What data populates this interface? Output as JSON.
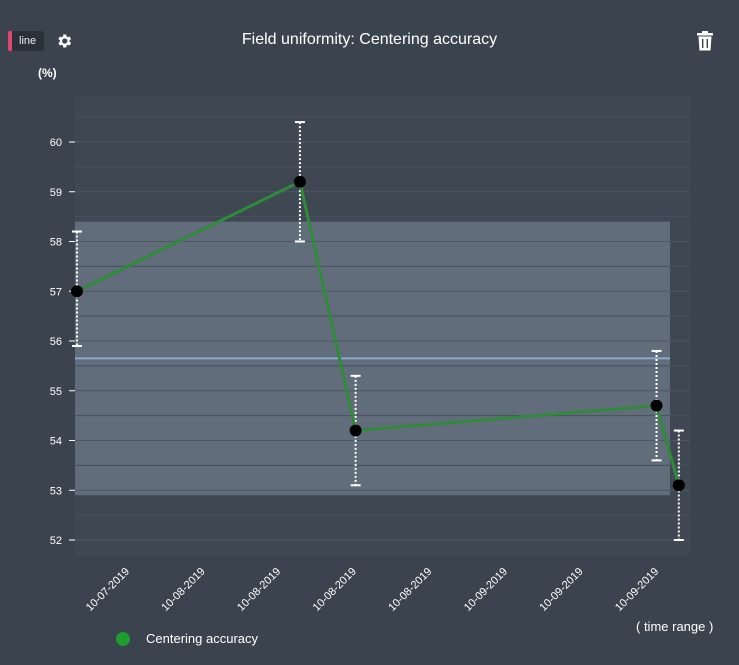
{
  "header": {
    "type_badge": "line",
    "title": "Field uniformity: Centering accuracy",
    "settings_icon": "gear-icon",
    "delete_icon": "trash-icon"
  },
  "colors": {
    "background": "#3b444e",
    "band": "#66717f",
    "mean_line": "#8aa9cf",
    "series": "#2f8a3a",
    "point": "#000000",
    "accent": "#e0466e",
    "legend_dot": "#1f9c2e"
  },
  "chart_data": {
    "type": "line",
    "title": "Field uniformity: Centering accuracy",
    "ylabel": "(%)",
    "xlabel": "( time range )",
    "ylim": [
      51.6,
      61.0
    ],
    "yticks": [
      "52",
      "53",
      "54",
      "55",
      "56",
      "57",
      "58",
      "59",
      "60"
    ],
    "xticks": [
      "10-07-2019",
      "10-08-2019",
      "10-08-2019",
      "10-08-2019",
      "10-08-2019",
      "10-09-2019",
      "10-09-2019",
      "10-09-2019"
    ],
    "grid": true,
    "legend_position": "bottom-left",
    "series": [
      {
        "name": "Centering accuracy",
        "points": [
          {
            "x": 0.0,
            "y": 57.0,
            "err_low": 55.9,
            "err_high": 58.2
          },
          {
            "x": 3.0,
            "y": 59.2,
            "err_low": 58.0,
            "err_high": 60.4
          },
          {
            "x": 3.75,
            "y": 54.2,
            "err_low": 53.1,
            "err_high": 55.3
          },
          {
            "x": 7.8,
            "y": 54.7,
            "err_low": 53.6,
            "err_high": 55.8
          },
          {
            "x": 8.1,
            "y": 53.1,
            "err_low": 52.0,
            "err_high": 54.2
          }
        ]
      }
    ],
    "reference_band": {
      "low": 52.9,
      "high": 58.4
    },
    "reference_line": 55.65
  }
}
